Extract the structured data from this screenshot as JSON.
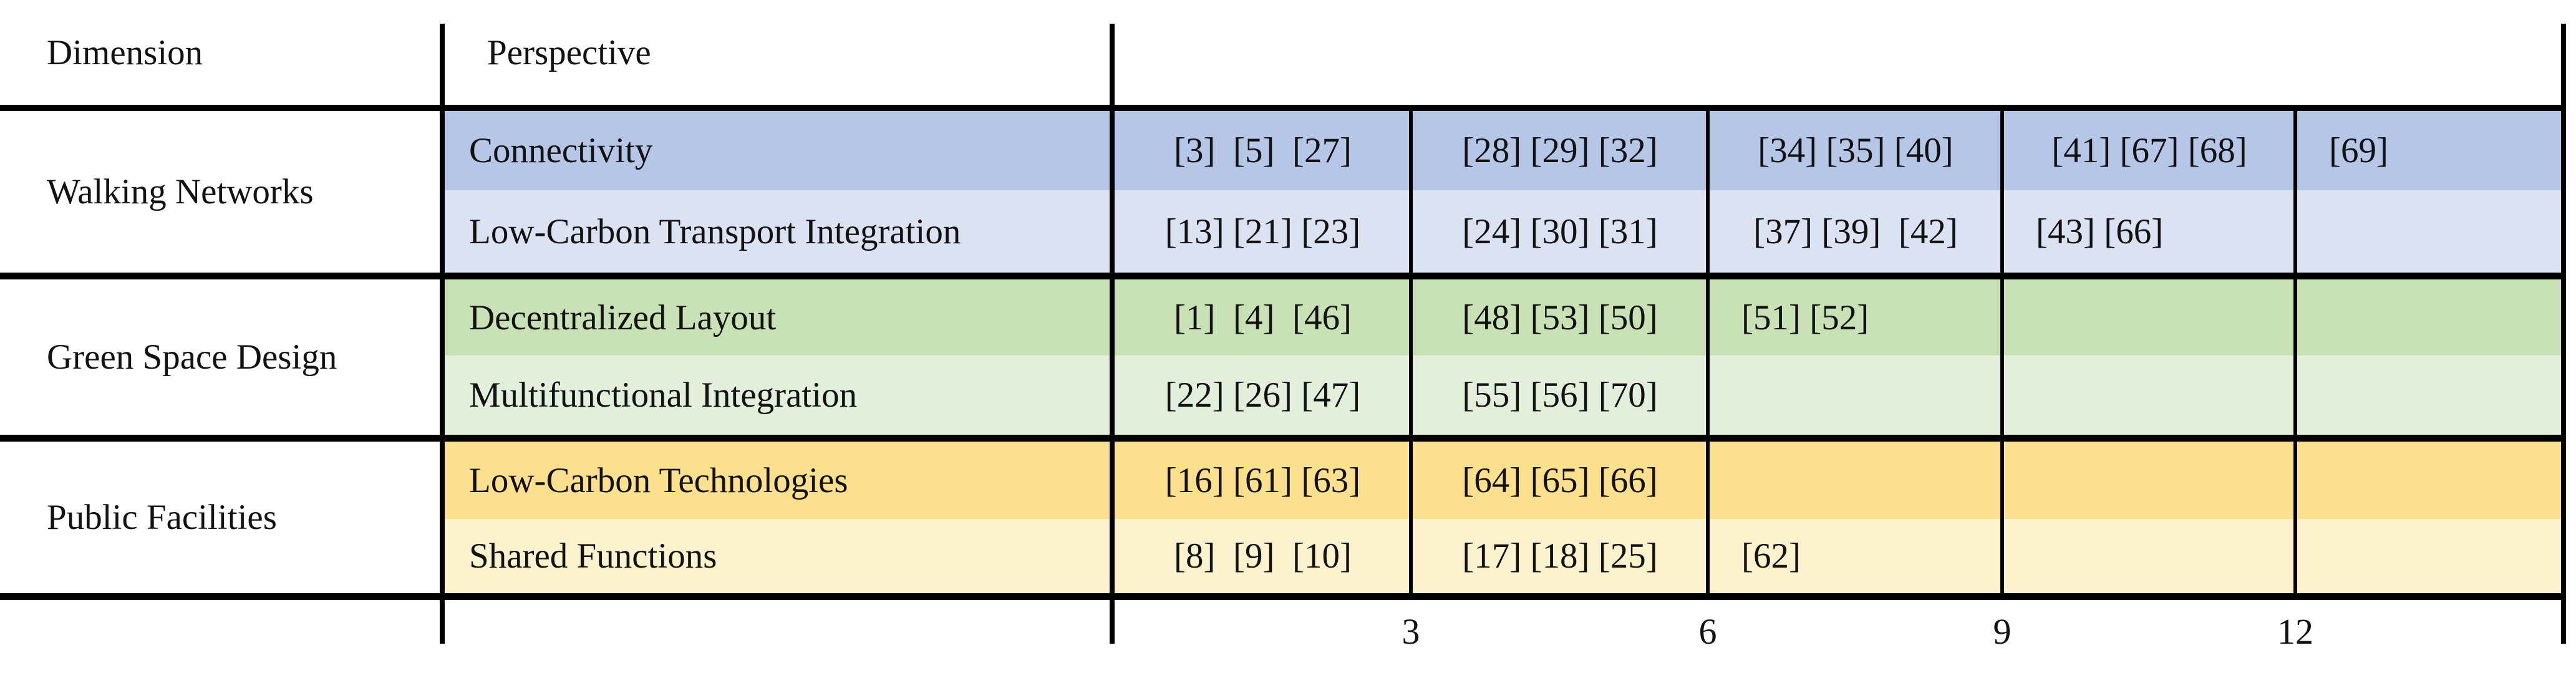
{
  "chart_data": {
    "type": "table",
    "title": "",
    "column_headers": [
      "Dimension",
      "Perspective"
    ],
    "x_axis": {
      "tick_labels": [
        "3",
        "6",
        "9",
        "12"
      ],
      "bin_width": 3,
      "range": [
        0,
        15
      ],
      "position": "bottom"
    },
    "groups": [
      {
        "dimension": "Walking Networks",
        "colors": {
          "dark": "#B5C6E7",
          "light": "#DBE3F3"
        },
        "rows": [
          {
            "perspective": "Connectivity",
            "shade": "dark",
            "refs": [
              3,
              5,
              27,
              28,
              29,
              32,
              34,
              35,
              40,
              41,
              67,
              68,
              69
            ],
            "cells": [
              "[3]  [5]  [27]",
              "[28] [29] [32]",
              "[34] [35] [40]",
              "[41] [67] [68]",
              "[69]"
            ]
          },
          {
            "perspective": "Low-Carbon Transport Integration",
            "shade": "light",
            "refs": [
              13,
              21,
              23,
              24,
              30,
              31,
              37,
              39,
              42,
              43,
              66
            ],
            "cells": [
              "[13] [21] [23]",
              "[24] [30] [31]",
              "[37] [39]  [42]",
              "[43] [66]",
              ""
            ]
          }
        ]
      },
      {
        "dimension": "Green Space Design",
        "colors": {
          "dark": "#C8E2B6",
          "light": "#E2EFDA"
        },
        "rows": [
          {
            "perspective": "Decentralized Layout",
            "shade": "dark",
            "refs": [
              1,
              4,
              46,
              48,
              53,
              50,
              51,
              52
            ],
            "cells": [
              "[1]  [4]  [46]",
              "[48] [53] [50]",
              "[51] [52]",
              "",
              ""
            ]
          },
          {
            "perspective": "Multifunctional Integration",
            "shade": "light",
            "refs": [
              22,
              26,
              47,
              55,
              56,
              70
            ],
            "cells": [
              "[22] [26] [47]",
              "[55] [56] [70]",
              "",
              "",
              ""
            ]
          }
        ]
      },
      {
        "dimension": "Public Facilities",
        "colors": {
          "dark": "#FCE08D",
          "light": "#FDF2CE"
        },
        "rows": [
          {
            "perspective": "Low-Carbon Technologies",
            "shade": "dark",
            "refs": [
              16,
              61,
              63,
              64,
              65,
              66
            ],
            "cells": [
              "[16] [61] [63]",
              "[64] [65] [66]",
              "",
              "",
              ""
            ]
          },
          {
            "perspective": "Shared Functions",
            "shade": "light",
            "refs": [
              8,
              9,
              10,
              17,
              18,
              25,
              62
            ],
            "cells": [
              "[8]  [9]  [10]",
              "[17] [18] [25]",
              "[62]",
              "",
              ""
            ]
          }
        ]
      }
    ]
  }
}
